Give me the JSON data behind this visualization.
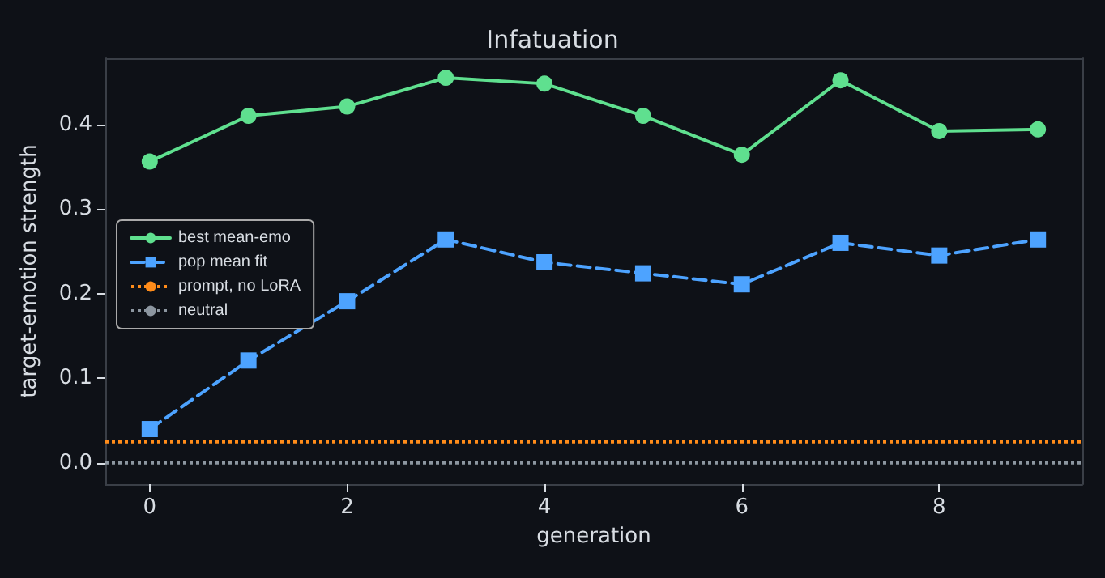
{
  "chart_data": {
    "type": "line",
    "title": "Infatuation",
    "xlabel": "generation",
    "ylabel": "target-emotion strength",
    "x": [
      0,
      1,
      2,
      3,
      4,
      5,
      6,
      7,
      8,
      9
    ],
    "series": [
      {
        "name": "best mean-emo",
        "color": "#5fe08f",
        "marker": "circle",
        "line_style": "solid",
        "values": [
          0.356,
          0.41,
          0.421,
          0.455,
          0.448,
          0.41,
          0.364,
          0.452,
          0.392,
          0.394
        ]
      },
      {
        "name": "pop mean fit",
        "color": "#4da3ff",
        "marker": "square",
        "line_style": "dashed",
        "values": [
          0.04,
          0.121,
          0.191,
          0.264,
          0.237,
          0.224,
          0.211,
          0.26,
          0.245,
          0.264
        ]
      }
    ],
    "ref_lines": [
      {
        "axis": "y",
        "value": 0.025,
        "label": "prompt, no LoRA",
        "color": "#ff8c1a",
        "line_style": "dotted"
      },
      {
        "axis": "y",
        "value": 0,
        "label": "neutral",
        "color": "#8c96a0",
        "line_style": "dotted"
      }
    ],
    "xlim": [
      -0.45,
      9.45
    ],
    "xticks": [
      0,
      2,
      4,
      6,
      8
    ],
    "ylim": [
      -0.025,
      0.478
    ],
    "yticks": [
      {
        "value": 0,
        "label": "0.0"
      },
      {
        "value": 0.1,
        "label": "0.1"
      },
      {
        "value": 0.2,
        "label": "0.2"
      },
      {
        "value": 0.3,
        "label": "0.3"
      },
      {
        "value": 0.4,
        "label": "0.4"
      }
    ],
    "grid": false,
    "legend": "center left"
  }
}
